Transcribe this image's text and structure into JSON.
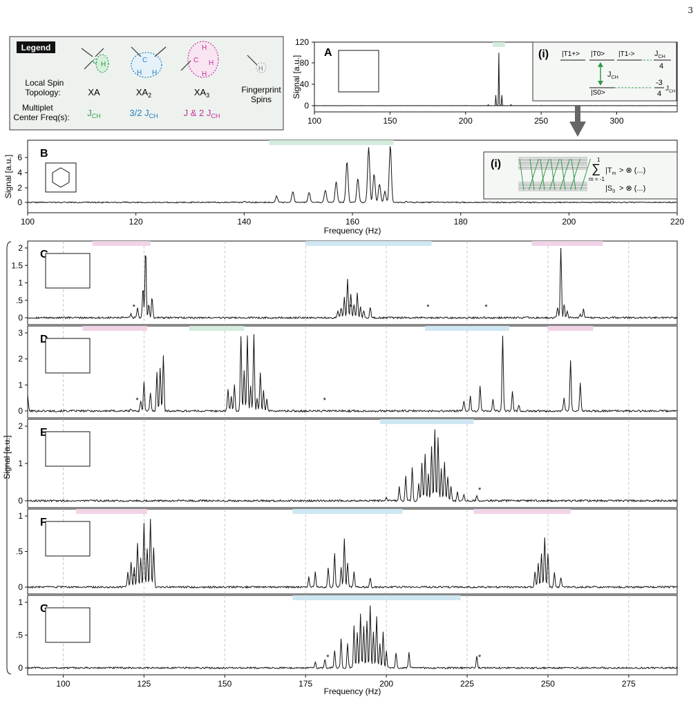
{
  "page_number": "3",
  "legend": {
    "title": "Legend",
    "row_topology": "Local Spin\nTopology:",
    "row_freq": "Multiplet\nCenter Freq(s):",
    "columns": [
      {
        "topology": "XA",
        "freq": "J",
        "freq_sub": "CH",
        "color": "#2e9b4a"
      },
      {
        "topology": "XA",
        "topology_sub": "2",
        "freq": "3/2 J",
        "freq_sub": "CH",
        "color": "#1f7fbf"
      },
      {
        "topology": "XA",
        "topology_sub": "3",
        "freq": "J & 2 J",
        "freq_sub": "CH",
        "color": "#c0309a"
      }
    ],
    "fingerprint": "Fingerprint\nSpins"
  },
  "colors": {
    "green": "#2e9b4a",
    "blue": "#1f7fbf",
    "magenta": "#c0309a",
    "green_band": "#d3ecdc",
    "blue_band": "#cfe7f3",
    "magenta_band": "#f1d3e8",
    "gray": "#9a9a9a",
    "legend_bg": "#eef2ee"
  },
  "panelA": {
    "label": "A",
    "ylabel": "Signal [a.u.]",
    "yticks": [
      "0",
      "40",
      "80",
      "120"
    ],
    "xticks": [
      "100",
      "150",
      "200",
      "250",
      "300"
    ],
    "xlim": [
      100,
      340
    ],
    "ylim": [
      0,
      120
    ],
    "band": [
      218,
      226
    ],
    "inset": {
      "label": "(i)",
      "states": [
        "|T1+>",
        "|T0>",
        "|T1->",
        "|S0>"
      ],
      "j_top": "J",
      "j_top_sub": "CH",
      "j_top_den": "4",
      "j_mid": "J",
      "j_mid_sub": "CH",
      "j_bot": "-3",
      "j_bot_den": "4",
      "j_bot_j": "J",
      "j_bot_sub": "CH"
    }
  },
  "panelB": {
    "label": "B",
    "ylabel": "Signal [a.u.]",
    "xlabel": "Frequency (Hz)",
    "yticks": [
      "0",
      "2",
      "4",
      "6"
    ],
    "xticks": [
      "100",
      "120",
      "140",
      "160",
      "180",
      "200",
      "220"
    ],
    "xlim": [
      100,
      220
    ],
    "ylim": [
      0,
      7
    ],
    "band": [
      144.6,
      167.6
    ],
    "inset": {
      "label": "(i)",
      "sum_top": "1",
      "sum_bot": "m = -1",
      "sum_term": "|T",
      "sum_term_sub": "m",
      "sum_tail": "> ⊗ (...)",
      "s0_term": "|S",
      "s0_tail": "> ⊗ (...)"
    }
  },
  "group": {
    "ylabel": "Signal [a.u.]",
    "xlabel": "Frequency (Hz)",
    "xlim": [
      89,
      290
    ],
    "xticks": [
      "100",
      "125",
      "150",
      "175",
      "200",
      "225",
      "250",
      "275"
    ],
    "panels": [
      {
        "label": "C",
        "yticks": [
          "0",
          ".5",
          "1",
          "1.5",
          "2"
        ],
        "ylim": [
          0,
          2
        ],
        "bands": [
          [
            {
              "from": 109,
              "to": 127,
              "color": "magenta"
            },
            {
              "from": 175,
              "to": 214,
              "color": "blue"
            },
            {
              "from": 245,
              "to": 267,
              "color": "magenta"
            }
          ]
        ],
        "stars": [
          121,
          188,
          212,
          230
        ]
      },
      {
        "label": "D",
        "yticks": [
          "0",
          "1",
          "2",
          "3"
        ],
        "ylim": [
          0,
          3.8
        ],
        "bands": [
          [
            {
              "from": 106,
              "to": 126,
              "color": "magenta"
            },
            {
              "from": 139,
              "to": 156,
              "color": "green"
            },
            {
              "from": 212,
              "to": 238,
              "color": "blue"
            },
            {
              "from": 250,
              "to": 264,
              "color": "magenta"
            }
          ]
        ],
        "stars": [
          122,
          180
        ]
      },
      {
        "label": "E",
        "yticks": [
          "0",
          "1",
          "2"
        ],
        "ylim": [
          0,
          2.7
        ],
        "bands": [
          [
            {
              "from": 198,
              "to": 227,
              "color": "blue"
            }
          ]
        ],
        "stars": [
          228
        ]
      },
      {
        "label": "F",
        "yticks": [
          "0",
          ".5",
          "1"
        ],
        "ylim": [
          0,
          1.45
        ],
        "bands": [
          [
            {
              "from": 104,
              "to": 126,
              "color": "magenta"
            },
            {
              "from": 171,
              "to": 205,
              "color": "blue"
            },
            {
              "from": 227,
              "to": 257,
              "color": "magenta"
            }
          ]
        ],
        "stars": [
          121
        ]
      },
      {
        "label": "G",
        "yticks": [
          "0",
          ".5",
          "1"
        ],
        "ylim": [
          0,
          1.1
        ],
        "bands": [
          [
            {
              "from": 171,
              "to": 223,
              "color": "blue"
            }
          ]
        ],
        "stars": [
          181,
          228
        ]
      }
    ]
  },
  "chart_data": [
    {
      "type": "line",
      "panel": "A",
      "ylabel": "Signal [a.u.]",
      "xlim": [
        100,
        340
      ],
      "ylim": [
        0,
        120
      ],
      "x": [
        100,
        150,
        200,
        215,
        220,
        222,
        224,
        230,
        250,
        300,
        340
      ],
      "y": [
        0,
        0,
        0.5,
        2,
        20,
        100,
        20,
        2,
        0.5,
        0,
        0
      ]
    },
    {
      "type": "line",
      "panel": "B",
      "ylabel": "Signal [a.u.]",
      "xlabel": "Frequency (Hz)",
      "xlim": [
        100,
        220
      ],
      "ylim": [
        0,
        7
      ],
      "x": [
        100,
        140,
        146,
        149,
        152,
        155,
        157,
        159,
        161,
        163,
        164,
        165,
        166,
        167,
        170,
        180,
        220
      ],
      "y": [
        0,
        0.1,
        0.7,
        1.2,
        1.1,
        1.4,
        2.3,
        4.6,
        2.7,
        6.2,
        3.2,
        2.1,
        1.2,
        6.4,
        0.1,
        0,
        0
      ]
    },
    {
      "type": "line",
      "panel": "C",
      "xlim": [
        89,
        290
      ],
      "ylim": [
        0,
        2
      ],
      "x": [
        89,
        121,
        123,
        124.7,
        125.5,
        126.5,
        127.5,
        185,
        186,
        187,
        188,
        189,
        190,
        191,
        192,
        193,
        195,
        253,
        254,
        255,
        256,
        260,
        261,
        290
      ],
      "y": [
        0,
        0.1,
        0.3,
        0.9,
        2.0,
        0.4,
        0.6,
        0.2,
        0.3,
        0.6,
        1.1,
        0.7,
        0.4,
        0.7,
        0.3,
        0.2,
        0.3,
        0.3,
        2.0,
        0.4,
        0.2,
        0.1,
        0.25,
        0
      ]
    },
    {
      "type": "line",
      "panel": "D",
      "xlim": [
        89,
        290
      ],
      "ylim": [
        0,
        3.8
      ],
      "x": [
        89,
        121,
        124,
        125,
        127,
        129,
        130,
        131,
        151,
        152,
        153,
        155,
        156,
        157,
        158,
        159,
        160,
        161,
        162,
        163,
        224,
        226,
        229,
        233,
        236,
        239,
        241,
        255,
        257,
        260,
        290
      ],
      "y": [
        0.8,
        0.1,
        0.5,
        1.4,
        0.9,
        1.9,
        2.1,
        2.7,
        1.1,
        0.7,
        1.3,
        3.6,
        2.0,
        3.7,
        1.2,
        3.7,
        0.6,
        1.9,
        1.0,
        0.6,
        0.5,
        0.7,
        1.2,
        0.6,
        3.7,
        1.0,
        0.3,
        0.6,
        2.5,
        1.4,
        0
      ]
    },
    {
      "type": "line",
      "panel": "E",
      "xlim": [
        89,
        290
      ],
      "ylim": [
        0,
        2.7
      ],
      "x": [
        89,
        200,
        204,
        206,
        208,
        210,
        211,
        212,
        213,
        214,
        215,
        216,
        217,
        218,
        219,
        220,
        222,
        224,
        228,
        290
      ],
      "y": [
        0,
        0.1,
        0.5,
        0.9,
        1.2,
        0.6,
        1.4,
        1.7,
        1.0,
        2.0,
        2.6,
        2.3,
        1.2,
        1.4,
        0.9,
        0.5,
        0.3,
        0.2,
        0.2,
        0
      ]
    },
    {
      "type": "line",
      "panel": "F",
      "xlim": [
        89,
        290
      ],
      "ylim": [
        0,
        1.45
      ],
      "x": [
        89,
        120,
        121,
        122,
        123,
        124,
        125,
        126,
        127,
        128,
        176,
        178,
        182,
        184,
        186,
        187,
        188,
        190,
        195,
        246,
        247,
        248,
        249,
        250,
        252,
        254,
        290
      ],
      "y": [
        0,
        0.3,
        0.5,
        0.4,
        0.9,
        0.6,
        1.3,
        0.8,
        1.4,
        0.8,
        0.2,
        0.3,
        0.4,
        0.7,
        0.4,
        1.0,
        0.5,
        0.3,
        0.2,
        0.3,
        0.5,
        0.7,
        1.0,
        0.7,
        0.3,
        0.2,
        0
      ]
    },
    {
      "type": "line",
      "panel": "G",
      "xlim": [
        89,
        290
      ],
      "ylim": [
        0,
        1.1
      ],
      "x": [
        89,
        178,
        181,
        184,
        186,
        188,
        190,
        191,
        192,
        193,
        194,
        195,
        196,
        197,
        198,
        199,
        200,
        203,
        207,
        228,
        290
      ],
      "y": [
        0,
        0.1,
        0.15,
        0.3,
        0.5,
        0.4,
        0.7,
        0.6,
        0.9,
        0.7,
        0.8,
        1.05,
        0.6,
        0.85,
        0.4,
        0.6,
        0.3,
        0.25,
        0.25,
        0.2,
        0
      ]
    }
  ]
}
